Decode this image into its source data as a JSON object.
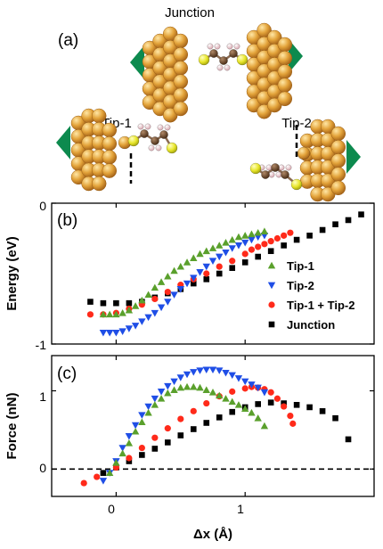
{
  "panel_a": {
    "panel_label": "(a)",
    "junction_label": "Junction",
    "tip1_label": "Tip-1",
    "tip2_label": "Tip-2"
  },
  "colors": {
    "gold": "#e3a33a",
    "gold_dark": "#b5761c",
    "sulfur": "#e8e62a",
    "carbon": "#6e4a2e",
    "hydrogen": "#f0d2d6",
    "arrow": "#0d8a4e",
    "tip1": "#5aa02c",
    "tip2": "#1f4ee6",
    "both": "#ff2a1a",
    "junction": "#000000"
  },
  "chart_data": [
    {
      "type": "scatter",
      "panel_label": "(b)",
      "ylabel": "Energy (eV)",
      "xlim": [
        -0.5,
        2.0
      ],
      "ylim": [
        -1,
        0
      ],
      "xticks": [
        0,
        1
      ],
      "yticks": [
        {
          "value": 0,
          "label": "0"
        },
        {
          "value": -1,
          "label": "-1"
        }
      ],
      "legend": "right",
      "series": [
        {
          "name": "Tip-1",
          "marker": "triangle-up",
          "color": "#5aa02c",
          "x": [
            -0.1,
            -0.05,
            0.0,
            0.05,
            0.1,
            0.15,
            0.2,
            0.25,
            0.3,
            0.35,
            0.4,
            0.45,
            0.5,
            0.55,
            0.6,
            0.65,
            0.7,
            0.75,
            0.8,
            0.85,
            0.9,
            0.95,
            1.0,
            1.05,
            1.1,
            1.15
          ],
          "y": [
            -0.79,
            -0.79,
            -0.79,
            -0.78,
            -0.76,
            -0.73,
            -0.69,
            -0.65,
            -0.6,
            -0.56,
            -0.52,
            -0.48,
            -0.45,
            -0.42,
            -0.39,
            -0.36,
            -0.34,
            -0.32,
            -0.3,
            -0.28,
            -0.26,
            -0.24,
            -0.23,
            -0.22,
            -0.21,
            -0.2
          ]
        },
        {
          "name": "Tip-2",
          "marker": "triangle-down",
          "color": "#1f4ee6",
          "x": [
            -0.1,
            -0.05,
            0.0,
            0.05,
            0.1,
            0.15,
            0.2,
            0.25,
            0.3,
            0.35,
            0.4,
            0.45,
            0.5,
            0.55,
            0.6,
            0.65,
            0.7,
            0.75,
            0.8,
            0.85,
            0.9,
            0.95,
            1.0,
            1.05,
            1.1,
            1.15
          ],
          "y": [
            -0.92,
            -0.92,
            -0.92,
            -0.91,
            -0.89,
            -0.87,
            -0.84,
            -0.81,
            -0.78,
            -0.74,
            -0.7,
            -0.65,
            -0.61,
            -0.57,
            -0.53,
            -0.49,
            -0.45,
            -0.41,
            -0.38,
            -0.35,
            -0.32,
            -0.3,
            -0.28,
            -0.26,
            -0.24,
            -0.23
          ]
        },
        {
          "name": "Tip-1 + Tip-2",
          "marker": "circle",
          "color": "#ff2a1a",
          "x": [
            -0.2,
            -0.1,
            0.0,
            0.1,
            0.2,
            0.3,
            0.4,
            0.5,
            0.6,
            0.7,
            0.8,
            0.9,
            1.0,
            1.05,
            1.1,
            1.15,
            1.2,
            1.25,
            1.3,
            1.35
          ],
          "y": [
            -0.79,
            -0.79,
            -0.78,
            -0.75,
            -0.72,
            -0.68,
            -0.63,
            -0.58,
            -0.54,
            -0.5,
            -0.45,
            -0.41,
            -0.36,
            -0.33,
            -0.31,
            -0.29,
            -0.27,
            -0.25,
            -0.23,
            -0.21
          ]
        },
        {
          "name": "Junction",
          "marker": "square",
          "color": "#000000",
          "x": [
            -0.2,
            -0.1,
            0.0,
            0.1,
            0.2,
            0.3,
            0.4,
            0.5,
            0.6,
            0.7,
            0.8,
            0.9,
            1.0,
            1.1,
            1.2,
            1.3,
            1.4,
            1.5,
            1.6,
            1.7,
            1.8,
            1.9
          ],
          "y": [
            -0.7,
            -0.71,
            -0.71,
            -0.71,
            -0.7,
            -0.67,
            -0.64,
            -0.61,
            -0.57,
            -0.54,
            -0.5,
            -0.46,
            -0.42,
            -0.38,
            -0.34,
            -0.3,
            -0.26,
            -0.23,
            -0.19,
            -0.15,
            -0.12,
            -0.08
          ]
        }
      ]
    },
    {
      "type": "scatter",
      "panel_label": "(c)",
      "xlabel": "Δx (Å)",
      "ylabel": "Force (nN)",
      "xlim": [
        -0.5,
        2.0
      ],
      "ylim": [
        -0.35,
        1.45
      ],
      "xticks": [
        0,
        1
      ],
      "yticks": [
        {
          "value": 0,
          "label": "0"
        },
        {
          "value": 1,
          "label": "1"
        }
      ],
      "zero_line": true,
      "series": [
        {
          "name": "Tip-1",
          "marker": "triangle-up",
          "color": "#5aa02c",
          "x": [
            -0.05,
            0.0,
            0.05,
            0.1,
            0.15,
            0.2,
            0.25,
            0.3,
            0.35,
            0.4,
            0.45,
            0.5,
            0.55,
            0.6,
            0.65,
            0.7,
            0.75,
            0.8,
            0.85,
            0.9,
            0.95,
            1.0,
            1.05,
            1.1,
            1.15
          ],
          "y": [
            -0.05,
            0.08,
            0.2,
            0.33,
            0.48,
            0.6,
            0.72,
            0.82,
            0.9,
            0.97,
            1.01,
            1.04,
            1.05,
            1.05,
            1.04,
            1.01,
            0.98,
            0.94,
            0.9,
            0.86,
            0.82,
            0.77,
            0.72,
            0.65,
            0.55
          ]
        },
        {
          "name": "Tip-2",
          "marker": "triangle-down",
          "color": "#1f4ee6",
          "x": [
            -0.1,
            -0.05,
            0.0,
            0.05,
            0.1,
            0.15,
            0.2,
            0.25,
            0.3,
            0.35,
            0.4,
            0.45,
            0.5,
            0.55,
            0.6,
            0.65,
            0.7,
            0.75,
            0.8,
            0.85,
            0.9,
            0.95,
            1.0,
            1.05,
            1.1,
            1.15
          ],
          "y": [
            -0.15,
            -0.05,
            0.1,
            0.27,
            0.42,
            0.56,
            0.69,
            0.8,
            0.9,
            0.99,
            1.06,
            1.12,
            1.17,
            1.21,
            1.24,
            1.26,
            1.27,
            1.27,
            1.26,
            1.23,
            1.2,
            1.16,
            1.12,
            1.08,
            1.04,
            0.98
          ]
        },
        {
          "name": "Tip-1 + Tip-2",
          "marker": "circle",
          "color": "#ff2a1a",
          "x": [
            -0.25,
            -0.15,
            0.0,
            0.1,
            0.2,
            0.3,
            0.4,
            0.5,
            0.6,
            0.7,
            0.8,
            0.9,
            1.0,
            1.05,
            1.1,
            1.15,
            1.2,
            1.25,
            1.3,
            1.35,
            1.37
          ],
          "y": [
            -0.18,
            -0.1,
            0.02,
            0.14,
            0.27,
            0.4,
            0.52,
            0.64,
            0.74,
            0.84,
            0.93,
            0.99,
            1.03,
            1.05,
            1.04,
            1.02,
            0.98,
            0.9,
            0.8,
            0.68,
            0.58
          ]
        },
        {
          "name": "Junction",
          "marker": "square",
          "color": "#000000",
          "x": [
            -0.1,
            0.0,
            0.1,
            0.2,
            0.3,
            0.4,
            0.5,
            0.6,
            0.7,
            0.8,
            0.9,
            1.0,
            1.1,
            1.2,
            1.3,
            1.4,
            1.5,
            1.6,
            1.7,
            1.8
          ],
          "y": [
            -0.05,
            0.02,
            0.1,
            0.18,
            0.26,
            0.34,
            0.43,
            0.51,
            0.59,
            0.66,
            0.73,
            0.79,
            0.83,
            0.85,
            0.84,
            0.82,
            0.79,
            0.74,
            0.65,
            0.38
          ]
        }
      ]
    }
  ]
}
